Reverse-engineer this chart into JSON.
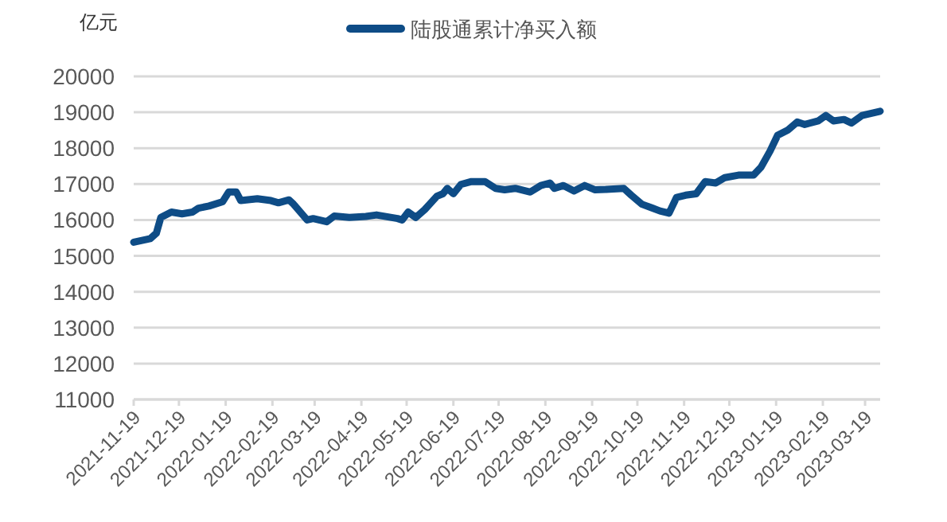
{
  "chart_data": {
    "type": "line",
    "ylabel": "亿元",
    "legend": "top",
    "grid": "y",
    "marker": "none",
    "line_style": "solid",
    "xlim": [
      "2021-11-19",
      "2023-03-29"
    ],
    "xticks": [
      "2021-11-19",
      "2021-12-19",
      "2022-01-19",
      "2022-02-19",
      "2022-03-19",
      "2022-04-19",
      "2022-05-19",
      "2022-06-19",
      "2022-07-19",
      "2022-08-19",
      "2022-09-19",
      "2022-10-19",
      "2022-11-19",
      "2022-12-19",
      "2023-01-19",
      "2023-02-19",
      "2023-03-19"
    ],
    "ylim": [
      11000,
      20000
    ],
    "yticks": [
      11000,
      12000,
      13000,
      14000,
      15000,
      16000,
      17000,
      18000,
      19000,
      20000
    ],
    "x": [
      "2021-11-19",
      "2021-11-30",
      "2021-12-04",
      "2021-12-07",
      "2021-12-14",
      "2021-12-21",
      "2021-12-28",
      "2022-01-01",
      "2022-01-08",
      "2022-01-17",
      "2022-01-21",
      "2022-01-26",
      "2022-01-29",
      "2022-02-09",
      "2022-02-18",
      "2022-02-23",
      "2022-03-02",
      "2022-03-05",
      "2022-03-14",
      "2022-03-18",
      "2022-03-27",
      "2022-04-01",
      "2022-04-11",
      "2022-04-22",
      "2022-04-29",
      "2022-05-13",
      "2022-05-16",
      "2022-05-20",
      "2022-05-25",
      "2022-05-31",
      "2022-06-08",
      "2022-06-12",
      "2022-06-15",
      "2022-06-19",
      "2022-06-24",
      "2022-07-01",
      "2022-07-10",
      "2022-07-17",
      "2022-07-23",
      "2022-07-30",
      "2022-08-09",
      "2022-08-16",
      "2022-08-22",
      "2022-08-25",
      "2022-08-31",
      "2022-09-07",
      "2022-09-14",
      "2022-09-21",
      "2022-09-28",
      "2022-10-10",
      "2022-10-15",
      "2022-10-22",
      "2022-10-29",
      "2022-11-03",
      "2022-11-09",
      "2022-11-14",
      "2022-11-20",
      "2022-11-27",
      "2022-12-03",
      "2022-12-10",
      "2022-12-16",
      "2022-12-25",
      "2023-01-04",
      "2023-01-09",
      "2023-01-15",
      "2023-01-20",
      "2023-01-27",
      "2023-02-02",
      "2023-02-07",
      "2023-02-16",
      "2023-02-21",
      "2023-02-26",
      "2023-03-05",
      "2023-03-10",
      "2023-03-17",
      "2023-03-29"
    ],
    "series": [
      {
        "name": "陆股通累计净买入额",
        "color": "#0e4c86",
        "values": [
          15380,
          15480,
          15630,
          16070,
          16220,
          16170,
          16220,
          16330,
          16390,
          16510,
          16780,
          16780,
          16540,
          16590,
          16540,
          16480,
          16560,
          16440,
          16000,
          16040,
          15950,
          16110,
          16070,
          16100,
          16140,
          16040,
          16000,
          16220,
          16070,
          16290,
          16660,
          16730,
          16880,
          16730,
          16990,
          17070,
          17070,
          16880,
          16840,
          16880,
          16780,
          16960,
          17030,
          16880,
          16960,
          16810,
          16960,
          16840,
          16850,
          16880,
          16690,
          16440,
          16330,
          16250,
          16190,
          16630,
          16690,
          16730,
          17070,
          17030,
          17180,
          17250,
          17250,
          17470,
          17920,
          18360,
          18510,
          18730,
          18660,
          18760,
          18910,
          18760,
          18800,
          18700,
          18910,
          19030
        ]
      }
    ]
  }
}
